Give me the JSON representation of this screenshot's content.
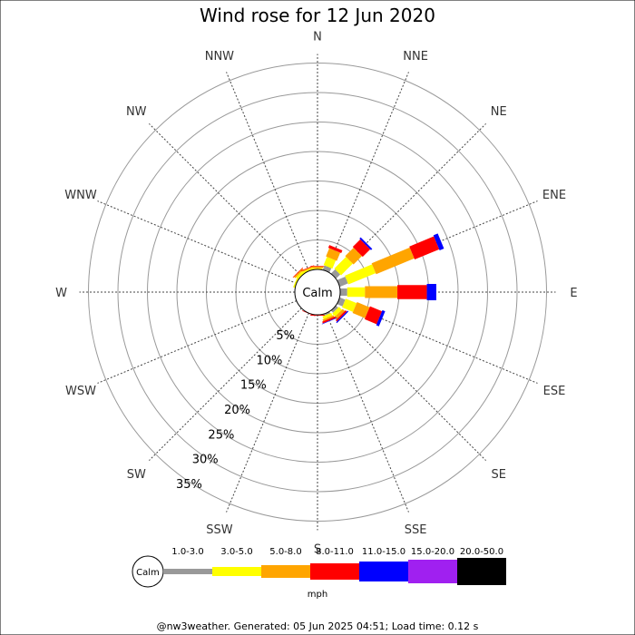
{
  "chart_data": {
    "type": "wind-rose",
    "title": "Wind rose for 12 Jun 2020",
    "directions": [
      "N",
      "NNE",
      "NE",
      "ENE",
      "E",
      "ESE",
      "SE",
      "SSE",
      "S",
      "SSW",
      "SW",
      "WSW",
      "W",
      "WNW",
      "NW",
      "NNW"
    ],
    "rings": [
      5,
      10,
      15,
      20,
      25,
      30,
      35
    ],
    "ring_labels": [
      "5%",
      "10%",
      "15%",
      "20%",
      "25%",
      "30%",
      "35%"
    ],
    "calm_label": "Calm",
    "unit": "mph",
    "speed_bins": [
      {
        "label": "1.0-3.0",
        "color": "#999999"
      },
      {
        "label": "3.0-5.0",
        "color": "#ffff00"
      },
      {
        "label": "5.0-8.0",
        "color": "#ffa500"
      },
      {
        "label": "8.0-11.0",
        "color": "#ff0000"
      },
      {
        "label": "11.0-15.0",
        "color": "#0000ff"
      },
      {
        "label": "15.0-20.0",
        "color": "#a020f0"
      },
      {
        "label": "20.0-50.0",
        "color": "#000000"
      }
    ],
    "series": [
      {
        "direction": "N",
        "values": [
          0,
          0.2,
          0.3,
          0.1,
          0,
          0,
          0
        ]
      },
      {
        "direction": "NNE",
        "values": [
          0.8,
          1.5,
          1.5,
          0.5,
          0,
          0,
          0
        ]
      },
      {
        "direction": "NE",
        "values": [
          1.0,
          2.8,
          2.0,
          1.8,
          0.3,
          0,
          0
        ]
      },
      {
        "direction": "ENE",
        "values": [
          1.5,
          5.0,
          7.0,
          4.5,
          0.8,
          0,
          0
        ]
      },
      {
        "direction": "E",
        "values": [
          1.2,
          3.0,
          5.5,
          5.0,
          1.6,
          0,
          0
        ]
      },
      {
        "direction": "ESE",
        "values": [
          1.0,
          2.0,
          2.3,
          2.2,
          0.5,
          0,
          0
        ]
      },
      {
        "direction": "SE",
        "values": [
          0.5,
          0.7,
          0.5,
          0.3,
          0.2,
          0,
          0
        ]
      },
      {
        "direction": "SSE",
        "values": [
          0.3,
          0.5,
          0.3,
          0.3,
          0.1,
          0,
          0
        ]
      },
      {
        "direction": "S",
        "values": [
          0,
          0,
          0,
          0.15,
          0,
          0,
          0
        ]
      },
      {
        "direction": "SSW",
        "values": [
          0,
          0,
          0,
          0.1,
          0,
          0,
          0
        ]
      },
      {
        "direction": "SW",
        "values": [
          0,
          0,
          0,
          0,
          0,
          0,
          0
        ]
      },
      {
        "direction": "WSW",
        "values": [
          0,
          0,
          0,
          0,
          0,
          0,
          0
        ]
      },
      {
        "direction": "W",
        "values": [
          0,
          0,
          0,
          0,
          0,
          0,
          0
        ]
      },
      {
        "direction": "WNW",
        "values": [
          0,
          0.3,
          0,
          0,
          0,
          0,
          0
        ]
      },
      {
        "direction": "NW",
        "values": [
          0,
          0.5,
          0.3,
          0.1,
          0,
          0,
          0
        ]
      },
      {
        "direction": "NNW",
        "values": [
          0,
          0.3,
          0.2,
          0.1,
          0,
          0,
          0
        ]
      }
    ]
  },
  "footer": "@nw3weather. Generated: 05 Jun 2025 04:51; Load time: 0.12 s"
}
